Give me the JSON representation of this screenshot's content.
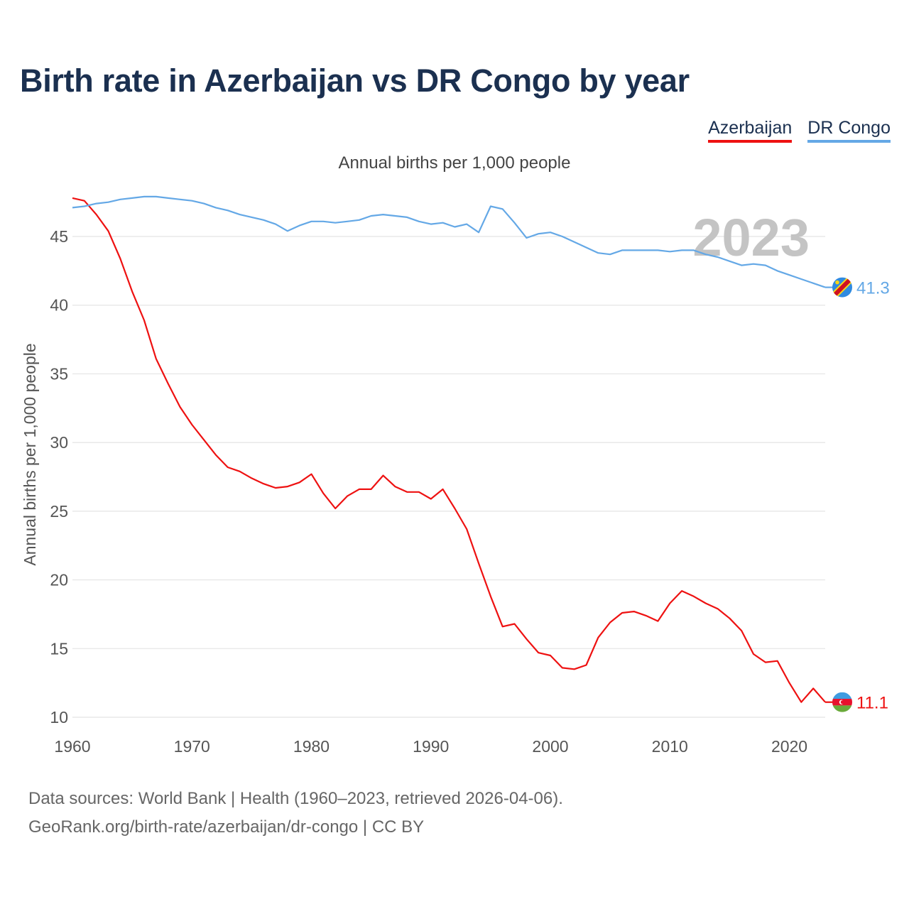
{
  "title": "Birth rate in Azerbaijan vs DR Congo by year",
  "legend": [
    {
      "label": "Azerbaijan",
      "color": "#ee1111"
    },
    {
      "label": "DR Congo",
      "color": "#64a8e6"
    }
  ],
  "subtitle": "Annual births per 1,000 people",
  "footer": {
    "line1": "Data sources: World Bank | Health (1960–2023, retrieved 2026-04-06).",
    "line2": "GeoRank.org/birth-rate/azerbaijan/dr-congo | CC BY"
  },
  "chart_data": {
    "type": "line",
    "title": "Birth rate in Azerbaijan vs DR Congo by year",
    "ylabel": "Annual births per 1,000 people",
    "xlabel": "",
    "year_label": "2023",
    "xlim": [
      1960,
      2023
    ],
    "ylim": [
      10,
      48
    ],
    "x_ticks": [
      1960,
      1970,
      1980,
      1990,
      2000,
      2010,
      2020
    ],
    "y_ticks": [
      10,
      15,
      20,
      25,
      30,
      35,
      40,
      45
    ],
    "x": [
      1960,
      1961,
      1962,
      1963,
      1964,
      1965,
      1966,
      1967,
      1968,
      1969,
      1970,
      1971,
      1972,
      1973,
      1974,
      1975,
      1976,
      1977,
      1978,
      1979,
      1980,
      1981,
      1982,
      1983,
      1984,
      1985,
      1986,
      1987,
      1988,
      1989,
      1990,
      1991,
      1992,
      1993,
      1994,
      1995,
      1996,
      1997,
      1998,
      1999,
      2000,
      2001,
      2002,
      2003,
      2004,
      2005,
      2006,
      2007,
      2008,
      2009,
      2010,
      2011,
      2012,
      2013,
      2014,
      2015,
      2016,
      2017,
      2018,
      2019,
      2020,
      2021,
      2022,
      2023
    ],
    "series": [
      {
        "name": "Azerbaijan",
        "color": "#ee1111",
        "end_label": "11.1",
        "values": [
          47.8,
          47.6,
          46.6,
          45.4,
          43.4,
          41.0,
          38.9,
          36.1,
          34.3,
          32.6,
          31.3,
          30.2,
          29.1,
          28.2,
          27.9,
          27.4,
          27.0,
          26.7,
          26.8,
          27.1,
          27.7,
          26.3,
          25.2,
          26.1,
          26.6,
          26.6,
          27.6,
          26.8,
          26.4,
          26.4,
          25.9,
          26.6,
          25.2,
          23.7,
          21.2,
          18.8,
          16.6,
          16.8,
          15.7,
          14.7,
          14.5,
          13.6,
          13.5,
          13.8,
          15.8,
          16.9,
          17.6,
          17.7,
          17.4,
          17.0,
          18.3,
          19.2,
          18.8,
          18.3,
          17.9,
          17.2,
          16.3,
          14.6,
          14.0,
          14.1,
          12.5,
          11.1,
          12.1,
          11.1
        ]
      },
      {
        "name": "DR Congo",
        "color": "#64a8e6",
        "end_label": "41.3",
        "values": [
          47.1,
          47.2,
          47.4,
          47.5,
          47.7,
          47.8,
          47.9,
          47.9,
          47.8,
          47.7,
          47.6,
          47.4,
          47.1,
          46.9,
          46.6,
          46.4,
          46.2,
          45.9,
          45.4,
          45.8,
          46.1,
          46.1,
          46.0,
          46.1,
          46.2,
          46.5,
          46.6,
          46.5,
          46.4,
          46.1,
          45.9,
          46.0,
          45.7,
          45.9,
          45.3,
          47.2,
          47.0,
          46.0,
          44.9,
          45.2,
          45.3,
          45.0,
          44.6,
          44.2,
          43.8,
          43.7,
          44.0,
          44.0,
          44.0,
          44.0,
          43.9,
          44.0,
          44.0,
          43.7,
          43.5,
          43.2,
          42.9,
          43.0,
          42.9,
          42.5,
          42.2,
          41.9,
          41.6,
          41.3
        ]
      }
    ]
  }
}
